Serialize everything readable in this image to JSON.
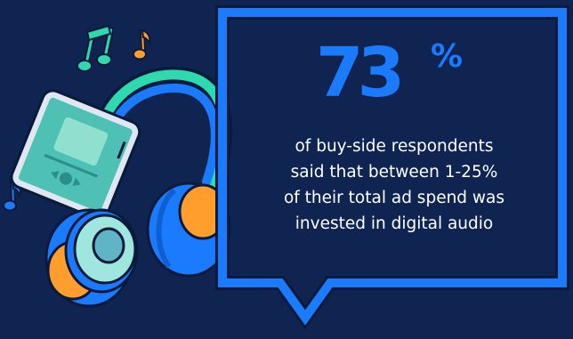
{
  "stat": {
    "value": "73",
    "unit": "%"
  },
  "caption_lines": [
    "of buy-side respondents",
    "said that between 1-25%",
    "of their total ad spend was",
    "invested in digital audio"
  ],
  "colors": {
    "background": "#0f2451",
    "accent_blue": "#1a7bff",
    "teal": "#2fd9b0",
    "orange": "#ff9e2c",
    "text": "#ffffff"
  },
  "icons": [
    "smartphone-icon",
    "headphones-icon",
    "music-note-icon",
    "speech-bubble-icon"
  ]
}
